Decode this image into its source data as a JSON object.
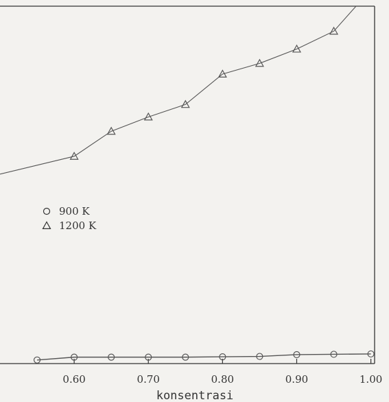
{
  "chart_data": {
    "type": "line",
    "xlabel": "konsentrasi",
    "x_ticks": [
      "0.60",
      "0.70",
      "0.80",
      "0.90",
      "1.00"
    ],
    "x_tick_values": [
      0.6,
      0.7,
      0.8,
      0.9,
      1.0
    ],
    "xlim": [
      0.5,
      1.005
    ],
    "ylim": [
      0,
      100
    ],
    "grid": false,
    "legend_position": "center-left",
    "series": [
      {
        "name": "900 K",
        "marker": "circle",
        "color": "#555555",
        "x": [
          0.55,
          0.6,
          0.65,
          0.7,
          0.75,
          0.8,
          0.85,
          0.9,
          0.95,
          1.0
        ],
        "y": [
          1.0,
          1.8,
          1.8,
          1.8,
          1.8,
          1.9,
          2.0,
          2.5,
          2.6,
          2.7
        ]
      },
      {
        "name": "1200 K",
        "marker": "triangle",
        "color": "#555555",
        "x": [
          0.5,
          0.6,
          0.65,
          0.7,
          0.75,
          0.8,
          0.85,
          0.9,
          0.95,
          0.98
        ],
        "y": [
          53.0,
          58.0,
          65.0,
          69.0,
          72.5,
          81.0,
          84.0,
          88.0,
          93.0,
          100.0
        ]
      }
    ]
  }
}
